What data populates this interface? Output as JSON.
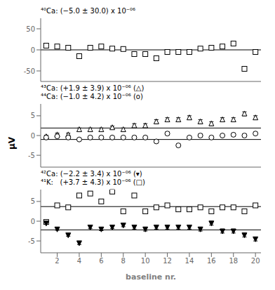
{
  "chart_data": [
    {
      "type": "scatter",
      "annotations": [
        "⁴⁰Ca: (−5.0 ± 30.0) x 10⁻⁰⁶"
      ],
      "x": [
        1,
        2,
        3,
        4,
        5,
        6,
        7,
        8,
        9,
        10,
        11,
        12,
        13,
        14,
        15,
        16,
        17,
        18,
        19,
        20
      ],
      "series": [
        {
          "marker": "open-square",
          "color": "#000000",
          "values": [
            10,
            8,
            5,
            -15,
            5,
            8,
            3,
            2,
            -10,
            -10,
            -20,
            -5,
            -5,
            -5,
            3,
            5,
            8,
            15,
            -45,
            -5
          ]
        }
      ],
      "hlines": [
        0
      ],
      "xlim": [
        0.5,
        20.5
      ],
      "xticks": [
        2,
        4,
        6,
        8,
        10,
        12,
        14,
        16,
        18,
        20
      ],
      "ylim": [
        -75,
        75
      ],
      "yticks": [
        -50,
        0,
        50
      ],
      "grid": false,
      "tick_labels": "y"
    },
    {
      "type": "scatter",
      "ylabel": "μV",
      "annotations": [
        "⁴³Ca: (+1.9 ± 3.9) x 10⁻⁰⁶ (△)",
        "⁴⁴Ca: (−1.0 ± 4.2) x 10⁻⁰⁶ (o)"
      ],
      "x": [
        1,
        2,
        3,
        4,
        5,
        6,
        7,
        8,
        9,
        10,
        11,
        12,
        13,
        14,
        15,
        16,
        17,
        18,
        19,
        20
      ],
      "series": [
        {
          "marker": "open-triangle-up",
          "color": "#000000",
          "values": [
            -0.3,
            0.2,
            0.2,
            1.5,
            1.5,
            1.5,
            2.0,
            1.5,
            2.5,
            2.5,
            3.5,
            4.0,
            4.0,
            4.5,
            3.5,
            3.0,
            4.0,
            4.0,
            5.5,
            4.5
          ],
          "errors": [
            0.4,
            0.4,
            0.4,
            0.4,
            0.4,
            0.4,
            0.4,
            0.4,
            0.5,
            0.5,
            0.5,
            0.5,
            0.5,
            0.5,
            0.5,
            0.5,
            0.5,
            0.5,
            0.5,
            0.5
          ]
        },
        {
          "marker": "open-circle",
          "color": "#000000",
          "values": [
            -0.5,
            -0.2,
            -0.5,
            -1.0,
            -0.5,
            -0.5,
            -0.5,
            -0.5,
            -0.5,
            -0.5,
            -1.5,
            0.5,
            -2.5,
            -0.5,
            0.0,
            -0.5,
            0.0,
            0.2,
            0.0,
            0.5
          ],
          "errors": [
            0.3,
            0.3,
            0.3,
            0.3,
            0.3,
            0.3,
            0.3,
            0.3,
            0.4,
            0.4,
            0.4,
            0.4,
            0.4,
            0.4,
            0.4,
            0.4,
            0.4,
            0.4,
            0.4,
            0.4
          ]
        }
      ],
      "hlines": [
        1.9,
        -1.0
      ],
      "xlim": [
        0.5,
        20.5
      ],
      "xticks": [
        2,
        4,
        6,
        8,
        10,
        12,
        14,
        16,
        18,
        20
      ],
      "ylim": [
        -8,
        8
      ],
      "yticks": [
        -5,
        0,
        5
      ],
      "grid": false,
      "tick_labels": "y"
    },
    {
      "type": "scatter",
      "xlabel": "baseline nr.",
      "annotations": [
        "⁴²Ca: (−2.2 ± 3.4) x 10⁻⁰⁶ (▾)",
        "⁴¹K:   (+3.7 ± 4.3) x 10⁻⁰⁶ (□)"
      ],
      "x": [
        1,
        2,
        3,
        4,
        5,
        6,
        7,
        8,
        9,
        10,
        11,
        12,
        13,
        14,
        15,
        16,
        17,
        18,
        19,
        20
      ],
      "series": [
        {
          "marker": "open-square",
          "color": "#000000",
          "values": [
            -0.2,
            4.0,
            3.5,
            6.5,
            7.0,
            5.0,
            7.5,
            2.5,
            6.5,
            2.5,
            3.5,
            4.0,
            3.0,
            3.0,
            3.5,
            2.5,
            3.5,
            3.5,
            2.5,
            4.0
          ],
          "errors": [
            0.4,
            0.4,
            0.4,
            0.5,
            0.5,
            0.5,
            0.5,
            0.5,
            0.5,
            0.5,
            0.5,
            0.5,
            0.5,
            0.5,
            0.5,
            0.5,
            0.5,
            0.5,
            0.5,
            0.5
          ]
        },
        {
          "marker": "filled-triangle-down",
          "color": "#000000",
          "values": [
            -0.5,
            -2.0,
            -3.5,
            -5.5,
            -1.5,
            -2.0,
            -1.5,
            -1.0,
            -1.5,
            -2.0,
            -1.5,
            -1.5,
            -1.5,
            -1.5,
            -2.0,
            -0.5,
            -2.5,
            -2.5,
            -3.5,
            -4.5
          ],
          "errors": [
            0.3,
            0.3,
            0.3,
            0.4,
            0.4,
            0.4,
            0.4,
            0.4,
            0.5,
            0.5,
            0.5,
            0.5,
            0.5,
            0.5,
            0.5,
            0.5,
            0.5,
            0.5,
            0.5,
            0.5
          ]
        }
      ],
      "hlines": [
        -2.2,
        3.7
      ],
      "xlim": [
        0.5,
        20.5
      ],
      "xticks": [
        2,
        4,
        6,
        8,
        10,
        12,
        14,
        16,
        18,
        20
      ],
      "ylim": [
        -8,
        8
      ],
      "yticks": [
        -5,
        0,
        5
      ],
      "grid": false
    }
  ]
}
